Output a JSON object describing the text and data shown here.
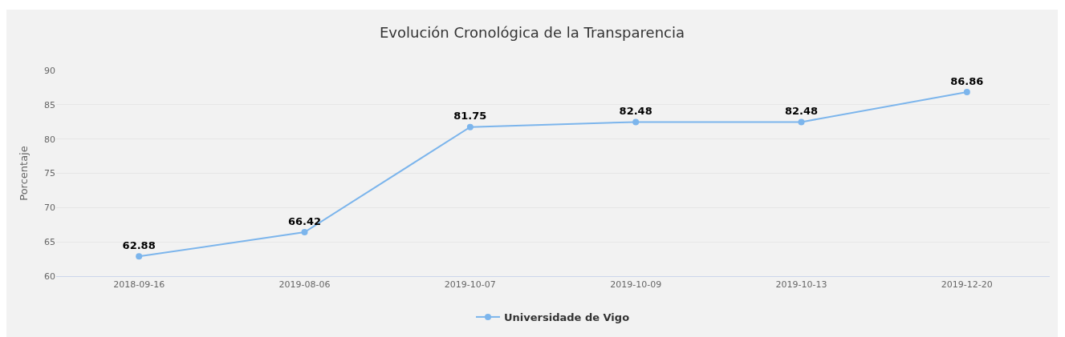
{
  "chart_data": {
    "type": "line",
    "title": "Evolución Cronológica de la Transparencia",
    "ylabel": "Porcentaje",
    "categories": [
      "2018-09-16",
      "2019-08-06",
      "2019-10-07",
      "2019-10-09",
      "2019-10-13",
      "2019-12-20"
    ],
    "series": [
      {
        "name": "Universidade de Vigo",
        "color": "#7cb5ec",
        "values": [
          62.88,
          66.42,
          81.75,
          82.48,
          82.48,
          86.86
        ]
      }
    ],
    "ylim": [
      60,
      90
    ],
    "yticks": [
      60,
      65,
      70,
      75,
      80,
      85,
      90
    ],
    "grid": "y",
    "legend": "bottom",
    "marker": "circle",
    "line_style": "solid",
    "data_labels": true
  }
}
